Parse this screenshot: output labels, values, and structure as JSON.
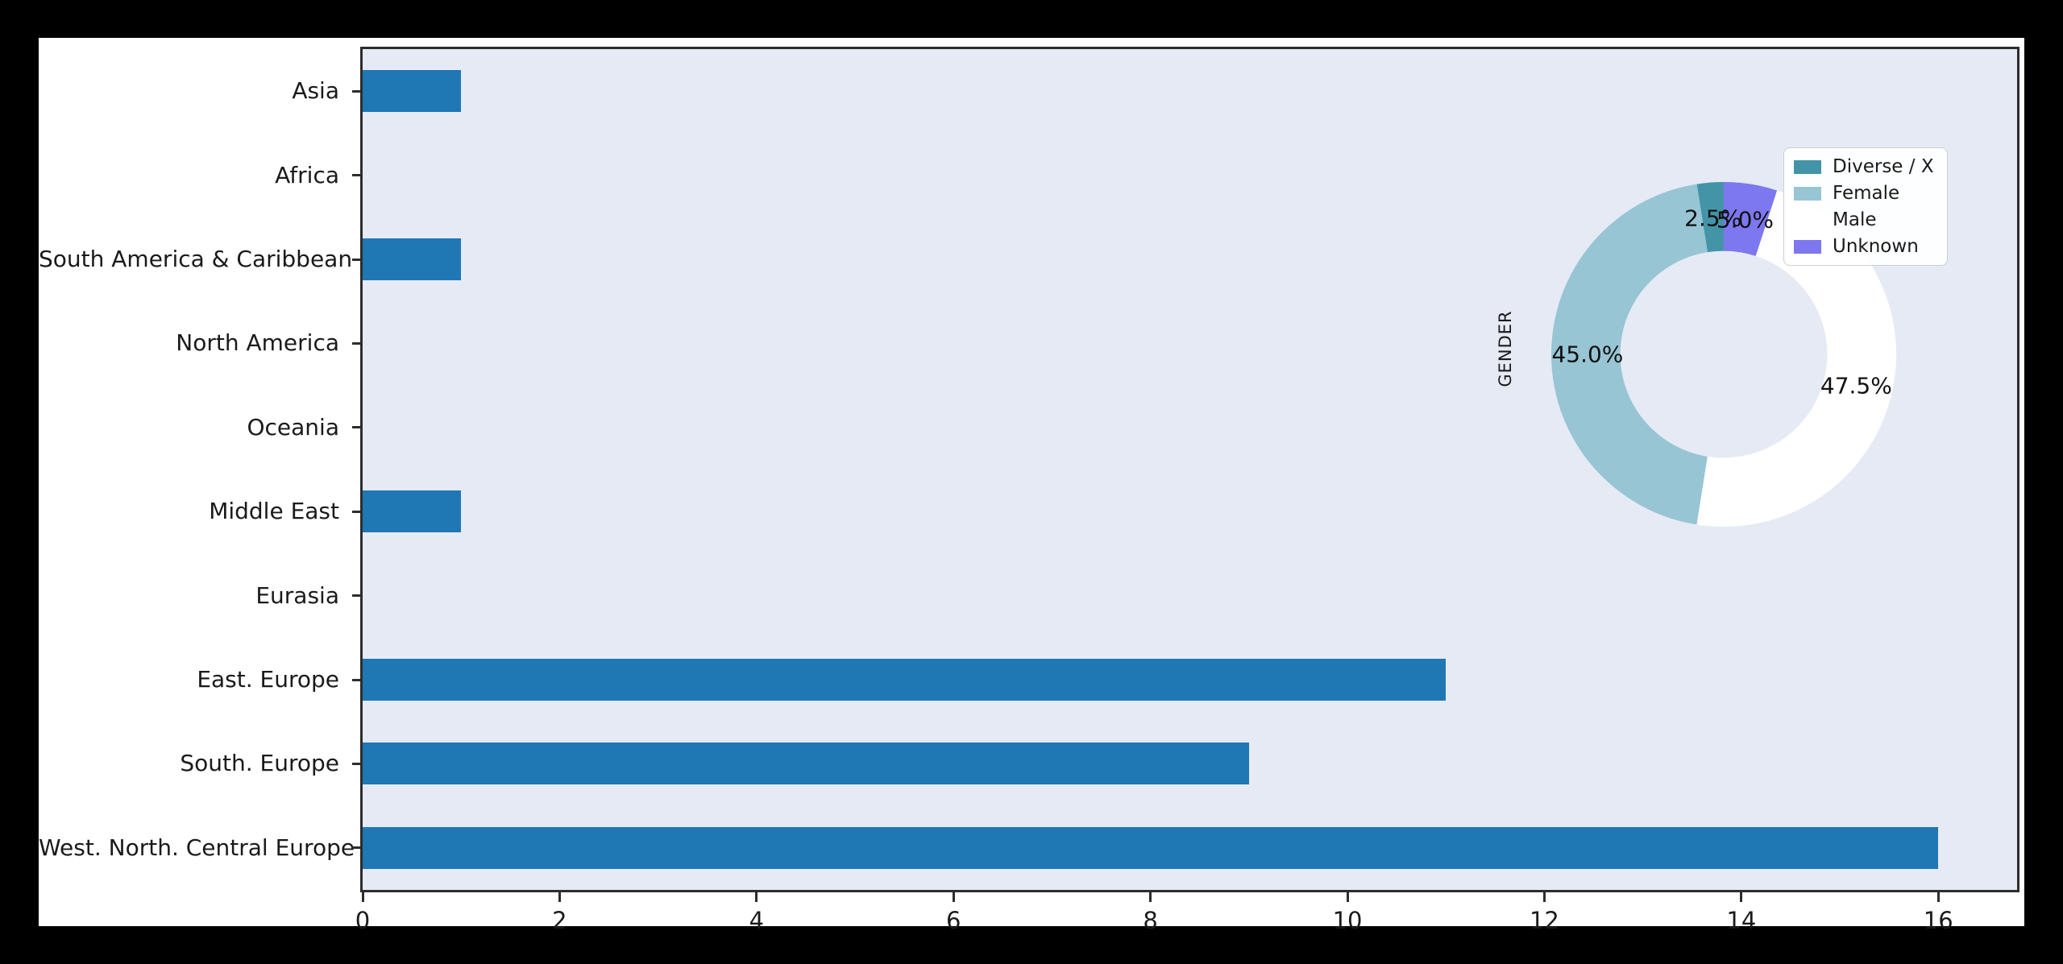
{
  "figure": {
    "outer_background": "#000000",
    "figure_background": "#ffffff",
    "plot_background": "#e6eaf5",
    "spine_color": "#2d2d2d",
    "text_color": "#1a1a1a"
  },
  "chart_data": [
    {
      "type": "bar",
      "orientation": "horizontal",
      "title": "",
      "xlabel": "",
      "ylabel": "",
      "categories": [
        "Asia",
        "Africa",
        "South America & Caribbean",
        "North America",
        "Oceania",
        "Middle East",
        "Eurasia",
        "East. Europe",
        "South. Europe",
        "West. North. Central Europe"
      ],
      "values": [
        1,
        0,
        1,
        0,
        0,
        1,
        0,
        11,
        9,
        16
      ],
      "bar_color": "#1f77b4",
      "xlim": [
        0,
        16.8
      ],
      "xticks": [
        "0",
        "2",
        "4",
        "6",
        "8",
        "10",
        "12",
        "14",
        "16"
      ],
      "grid": false,
      "legend_position": "none"
    },
    {
      "type": "pie",
      "donut": true,
      "ylabel": "GENDER",
      "start_angle": 90,
      "counterclock": true,
      "inner_radius_ratio": 0.6,
      "pct_distance": 0.79,
      "legend_position": "upper right",
      "slices": [
        {
          "label": "Diverse / X",
          "value": 2.5,
          "pct_label": "2.5%",
          "color": "#4494a8"
        },
        {
          "label": "Female",
          "value": 45.0,
          "pct_label": "45.0%",
          "color": "#97c5d3"
        },
        {
          "label": "Male",
          "value": 47.5,
          "pct_label": "47.5%",
          "color": "#ffffff"
        },
        {
          "label": "Unknown",
          "value": 5.0,
          "pct_label": "5.0%",
          "color": "#7d78f0"
        }
      ]
    }
  ]
}
